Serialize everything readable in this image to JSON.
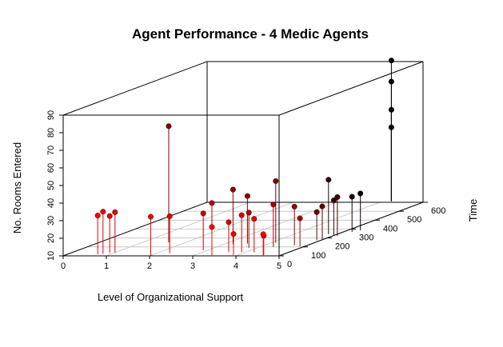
{
  "chart_data": {
    "type": "scatter3d",
    "title": "Agent Performance - 4 Medic Agents",
    "xlabel": "Level of Organizational Support",
    "ylabel": "Time",
    "zlabel": "No. Rooms Entered",
    "xlim": [
      0,
      5
    ],
    "ylim": [
      0,
      600
    ],
    "zlim": [
      10,
      90
    ],
    "xticks": [
      "0",
      "1",
      "2",
      "3",
      "4",
      "5"
    ],
    "yticks": [
      "0",
      "100",
      "200",
      "300",
      "400",
      "500",
      "600"
    ],
    "zticks": [
      "10",
      "20",
      "30",
      "40",
      "50",
      "60",
      "70",
      "80",
      "90"
    ],
    "point_style": "filled circles with vertical drop lines; color shades from red (early time) to black (late time)",
    "colors": {
      "early": "#ff0000",
      "late": "#000000",
      "grid": "#c0c0c0",
      "box": "#000000"
    },
    "points": [
      {
        "x": 0.7,
        "y": 18,
        "z": 32
      },
      {
        "x": 0.8,
        "y": 22,
        "z": 34
      },
      {
        "x": 0.9,
        "y": 32,
        "z": 31
      },
      {
        "x": 1.0,
        "y": 36,
        "z": 33
      },
      {
        "x": 1.6,
        "y": 152,
        "z": 76
      },
      {
        "x": 2.0,
        "y": 5,
        "z": 32
      },
      {
        "x": 2.3,
        "y": 30,
        "z": 31
      },
      {
        "x": 2.9,
        "y": 62,
        "z": 31
      },
      {
        "x": 3.0,
        "y": 80,
        "z": 36
      },
      {
        "x": 3.2,
        "y": 132,
        "z": 41
      },
      {
        "x": 3.5,
        "y": 138,
        "z": 37
      },
      {
        "x": 3.4,
        "y": 8,
        "z": 26
      },
      {
        "x": 3.6,
        "y": 42,
        "z": 27
      },
      {
        "x": 3.8,
        "y": 90,
        "z": 30
      },
      {
        "x": 3.9,
        "y": 8,
        "z": 22
      },
      {
        "x": 3.9,
        "y": 42,
        "z": 31
      },
      {
        "x": 4.2,
        "y": 40,
        "z": 29
      },
      {
        "x": 4.1,
        "y": 148,
        "z": 45
      },
      {
        "x": 4.3,
        "y": 102,
        "z": 34
      },
      {
        "x": 4.6,
        "y": 6,
        "z": 22
      },
      {
        "x": 4.6,
        "y": 8,
        "z": 21
      },
      {
        "x": 4.7,
        "y": 118,
        "z": 32
      },
      {
        "x": 4.8,
        "y": 242,
        "z": 41
      },
      {
        "x": 4.2,
        "y": 612,
        "z": 90
      },
      {
        "x": 4.2,
        "y": 612,
        "z": 78
      },
      {
        "x": 4.2,
        "y": 612,
        "z": 62
      },
      {
        "x": 4.2,
        "y": 612,
        "z": 52
      },
      {
        "x": 4.9,
        "y": 105,
        "z": 26
      },
      {
        "x": 4.9,
        "y": 175,
        "z": 26
      },
      {
        "x": 5.0,
        "y": 180,
        "z": 29
      },
      {
        "x": 5.0,
        "y": 228,
        "z": 30
      },
      {
        "x": 5.1,
        "y": 225,
        "z": 32
      },
      {
        "x": 5.2,
        "y": 268,
        "z": 30
      },
      {
        "x": 5.3,
        "y": 285,
        "z": 31
      }
    ]
  }
}
